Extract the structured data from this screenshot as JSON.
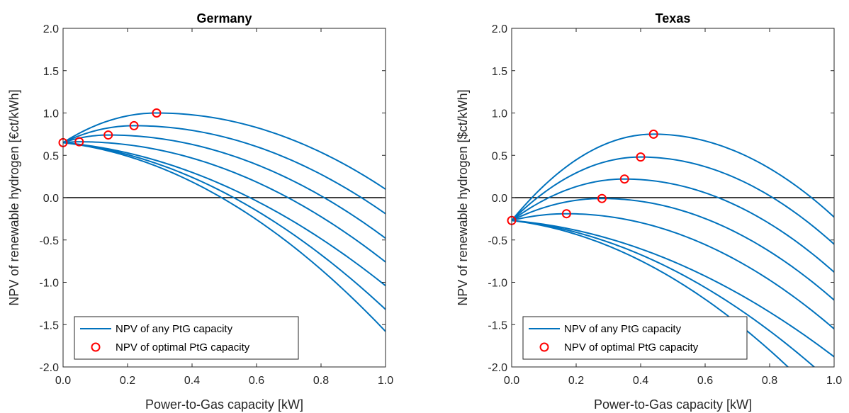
{
  "chart_data": [
    {
      "type": "line",
      "title": "Germany",
      "xlabel": "Power-to-Gas capacity [kW]",
      "ylabel": "NPV of renewable hydrogen [€ct/kWh]",
      "xlim": [
        0,
        1
      ],
      "ylim": [
        -2,
        2
      ],
      "x_ticks": [
        "0.0",
        "0.2",
        "0.4",
        "0.6",
        "0.8",
        "1.0"
      ],
      "y_ticks": [
        "-2.0",
        "-1.5",
        "-1.0",
        "-0.5",
        "0.0",
        "0.5",
        "1.0",
        "1.5",
        "2.0"
      ],
      "grid": false,
      "legend": {
        "placement": "bottom-left",
        "entries": [
          "NPV of any PtG capacity",
          "NPV of optimal PtG capacity"
        ]
      },
      "series": [
        {
          "name": "NPV of any PtG capacity",
          "kind": "curves",
          "color": "#0072BD",
          "start": 0.65,
          "curves": [
            {
              "peak_x": 0.29,
              "peak_y": 1.0,
              "end_y": 0.1
            },
            {
              "peak_x": 0.22,
              "peak_y": 0.85,
              "end_y": -0.19
            },
            {
              "peak_x": 0.14,
              "peak_y": 0.74,
              "end_y": -0.48
            },
            {
              "peak_x": 0.05,
              "peak_y": 0.66,
              "end_y": -0.76
            },
            {
              "peak_x": 0.0,
              "peak_y": 0.65,
              "end_y": -1.04
            },
            {
              "peak_x": 0.0,
              "peak_y": 0.65,
              "end_y": -1.32
            },
            {
              "peak_x": 0.0,
              "peak_y": 0.65,
              "end_y": -1.58
            }
          ]
        },
        {
          "name": "NPV of optimal PtG capacity",
          "kind": "markers",
          "color": "#FF0000",
          "x": [
            0.0,
            0.05,
            0.14,
            0.22,
            0.29
          ],
          "y": [
            0.65,
            0.66,
            0.74,
            0.85,
            1.0
          ]
        }
      ]
    },
    {
      "type": "line",
      "title": "Texas",
      "xlabel": "Power-to-Gas capacity [kW]",
      "ylabel": "NPV of renewable hydrogen [$ct/kWh]",
      "xlim": [
        0,
        1
      ],
      "ylim": [
        -2,
        2
      ],
      "x_ticks": [
        "0.0",
        "0.2",
        "0.4",
        "0.6",
        "0.8",
        "1.0"
      ],
      "y_ticks": [
        "-2.0",
        "-1.5",
        "-1.0",
        "-0.5",
        "0.0",
        "0.5",
        "1.0",
        "1.5",
        "2.0"
      ],
      "grid": false,
      "legend": {
        "placement": "bottom-left",
        "entries": [
          "NPV of any PtG capacity",
          "NPV of optimal PtG capacity"
        ]
      },
      "series": [
        {
          "name": "NPV of any PtG capacity",
          "kind": "curves",
          "color": "#0072BD",
          "start": -0.27,
          "curves": [
            {
              "peak_x": 0.44,
              "peak_y": 0.75,
              "end_y": -0.23
            },
            {
              "peak_x": 0.4,
              "peak_y": 0.48,
              "end_y": -0.55
            },
            {
              "peak_x": 0.35,
              "peak_y": 0.22,
              "end_y": -0.88
            },
            {
              "peak_x": 0.28,
              "peak_y": -0.01,
              "end_y": -1.21
            },
            {
              "peak_x": 0.17,
              "peak_y": -0.19,
              "end_y": -1.55
            },
            {
              "peak_x": 0.0,
              "peak_y": -0.27,
              "end_y": -1.88
            },
            {
              "peak_x": 0.0,
              "peak_y": -0.27,
              "end_y": -2.21
            },
            {
              "peak_x": 0.0,
              "peak_y": -0.27,
              "end_y": -2.55
            }
          ]
        },
        {
          "name": "NPV of optimal PtG capacity",
          "kind": "markers",
          "color": "#FF0000",
          "x": [
            0.0,
            0.17,
            0.28,
            0.35,
            0.4,
            0.44
          ],
          "y": [
            -0.27,
            -0.19,
            -0.01,
            0.22,
            0.48,
            0.75
          ]
        }
      ]
    }
  ]
}
